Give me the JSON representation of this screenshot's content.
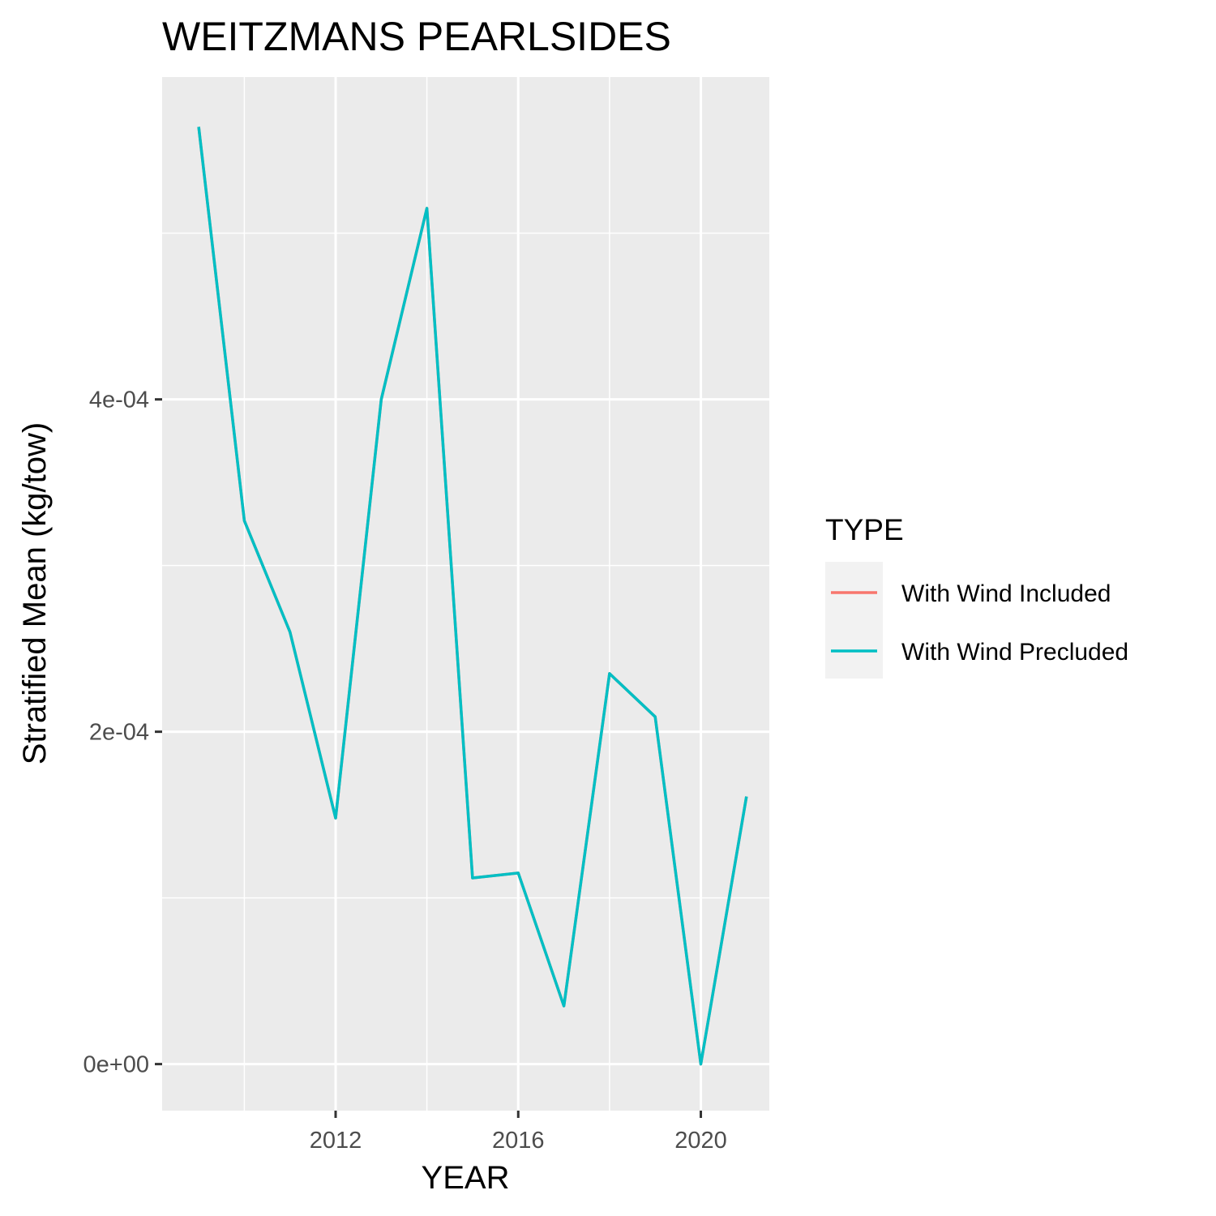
{
  "chart_data": {
    "type": "line",
    "title": "WEITZMANS PEARLSIDES",
    "xlabel": "YEAR",
    "ylabel": "Stratified Mean (kg/tow)",
    "xlim": [
      2008.2,
      2021.5
    ],
    "ylim": [
      -2.8e-05,
      0.000594
    ],
    "x_ticks": [
      2012,
      2016,
      2020
    ],
    "x_tick_labels": [
      "2012",
      "2016",
      "2020"
    ],
    "x_minor": [
      2010,
      2014,
      2018
    ],
    "y_ticks": [
      0,
      0.0002,
      0.0004
    ],
    "y_tick_labels": [
      "0e+00",
      "2e-04",
      "4e-04"
    ],
    "y_minor": [
      0.0001,
      0.0003,
      0.0005
    ],
    "grid": true,
    "legend": {
      "title": "TYPE",
      "position": "right",
      "entries": [
        {
          "label": "With Wind Included",
          "color": "#F8766D"
        },
        {
          "label": "With Wind Precluded",
          "color": "#00BFC4"
        }
      ]
    },
    "series": [
      {
        "name": "With Wind Included",
        "color": "#F8766D",
        "x": [
          2009,
          2010,
          2011,
          2012,
          2013,
          2014,
          2015,
          2016,
          2017,
          2018,
          2019,
          2020,
          2021
        ],
        "y": [
          0.000564,
          0.000327,
          0.00026,
          0.000148,
          0.0004,
          0.000515,
          0.000112,
          0.000115,
          3.5e-05,
          0.000235,
          0.000209,
          0.0,
          0.000161
        ]
      },
      {
        "name": "With Wind Precluded",
        "color": "#00BFC4",
        "x": [
          2009,
          2010,
          2011,
          2012,
          2013,
          2014,
          2015,
          2016,
          2017,
          2018,
          2019,
          2020,
          2021
        ],
        "y": [
          0.000564,
          0.000327,
          0.00026,
          0.000148,
          0.0004,
          0.000515,
          0.000112,
          0.000115,
          3.5e-05,
          0.000235,
          0.000209,
          0.0,
          0.000161
        ]
      }
    ]
  }
}
